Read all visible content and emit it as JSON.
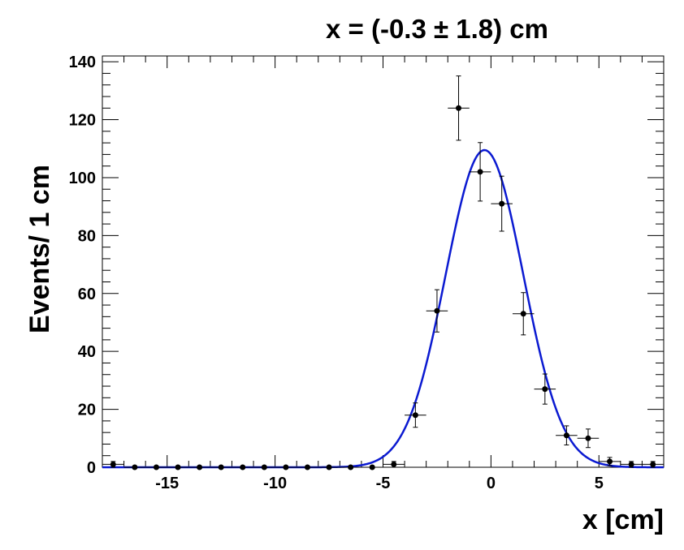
{
  "chart_data": {
    "type": "scatter",
    "title": "x = (-0.3 ±  1.8) cm",
    "xlabel": "x [cm]",
    "ylabel": "Events/ 1 cm",
    "xlim": [
      -18,
      8
    ],
    "ylim": [
      0,
      142
    ],
    "grid": false,
    "legend": "none",
    "x_ticks": [
      -15,
      -10,
      -5,
      0,
      5
    ],
    "x_tick_labels": [
      "-15",
      "-10",
      "-5",
      "0",
      "5"
    ],
    "y_ticks": [
      0,
      20,
      40,
      60,
      80,
      100,
      120,
      140
    ],
    "y_tick_labels": [
      "0",
      "20",
      "40",
      "60",
      "80",
      "100",
      "120",
      "140"
    ],
    "series": [
      {
        "type": "points_with_errors",
        "color": "#000000",
        "x": [
          -17.5,
          -16.5,
          -15.5,
          -14.5,
          -13.5,
          -12.5,
          -11.5,
          -10.5,
          -9.5,
          -8.5,
          -7.5,
          -6.5,
          -5.5,
          -4.5,
          -3.5,
          -2.5,
          -1.5,
          -0.5,
          0.5,
          1.5,
          2.5,
          3.5,
          4.5,
          5.5,
          6.5,
          7.5
        ],
        "y": [
          1,
          0,
          0,
          0,
          0,
          0,
          0,
          0,
          0,
          0,
          0,
          0,
          0,
          1,
          18,
          54,
          124,
          102,
          91,
          53,
          27,
          11,
          10,
          2,
          1,
          1
        ],
        "xerr": 0.5,
        "yerr": [
          1,
          0,
          0,
          0,
          0,
          0,
          0,
          0,
          0,
          0,
          0,
          0,
          0,
          1,
          4.2,
          7.3,
          11.1,
          10.1,
          9.5,
          7.3,
          5.2,
          3.3,
          3.2,
          1.4,
          1,
          1
        ]
      },
      {
        "type": "gaussian_fit",
        "color": "#0b1ad1",
        "amplitude": 109.5,
        "mean": -0.3,
        "sigma": 1.8
      }
    ]
  }
}
